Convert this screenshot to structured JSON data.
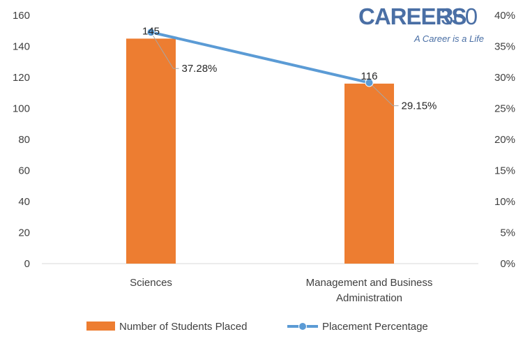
{
  "chart_data": {
    "type": "bar",
    "categories": [
      "Sciences",
      "Management and Business Administration"
    ],
    "category_lines": [
      [
        "Sciences"
      ],
      [
        "Management and Business",
        "Administration"
      ]
    ],
    "series": [
      {
        "name": "Number of Students Placed",
        "type": "bar",
        "axis": "left",
        "values": [
          145,
          116
        ],
        "labels": [
          "145",
          "116"
        ],
        "color": "#ed7d31"
      },
      {
        "name": "Placement Percentage",
        "type": "line",
        "axis": "right",
        "values": [
          37.28,
          29.15
        ],
        "labels": [
          "37.28%",
          "29.15%"
        ],
        "color": "#5b9bd5"
      }
    ],
    "y_left": {
      "min": 0,
      "max": 160,
      "step": 20,
      "ticks": [
        "0",
        "20",
        "40",
        "60",
        "80",
        "100",
        "120",
        "140",
        "160"
      ]
    },
    "y_right": {
      "min": 0,
      "max": 40,
      "step": 5,
      "ticks": [
        "0%",
        "5%",
        "10%",
        "15%",
        "20%",
        "25%",
        "30%",
        "35%",
        "40%"
      ]
    },
    "grid": false,
    "legend_position": "bottom"
  },
  "logo": {
    "brand": "CAREERS",
    "number": "360",
    "tagline": "A Career is a Life"
  }
}
